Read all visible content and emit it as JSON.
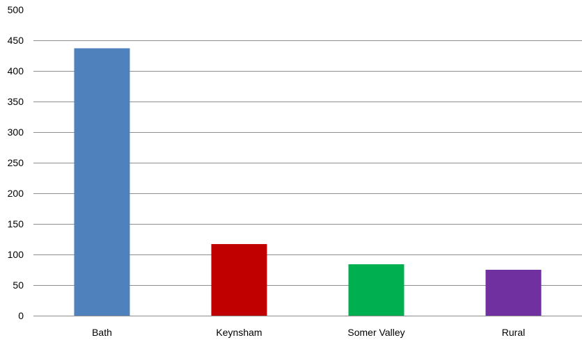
{
  "chart_data": {
    "type": "bar",
    "title": "",
    "xlabel": "",
    "ylabel": "",
    "categories": [
      "Bath",
      "Keynsham",
      "Somer Valley",
      "Rural"
    ],
    "values": [
      437,
      117,
      84,
      75
    ],
    "colors": [
      "#4f81bd",
      "#c00000",
      "#00b050",
      "#7030a0"
    ],
    "ylim": [
      0,
      500
    ],
    "yticks": [
      0,
      50,
      100,
      150,
      200,
      250,
      300,
      350,
      400,
      450,
      500
    ],
    "ytick_labels": [
      "0",
      "50",
      "100",
      "150",
      "200",
      "250",
      "300",
      "350",
      "400",
      "450",
      "500"
    ],
    "grid": true,
    "legend": "none"
  }
}
